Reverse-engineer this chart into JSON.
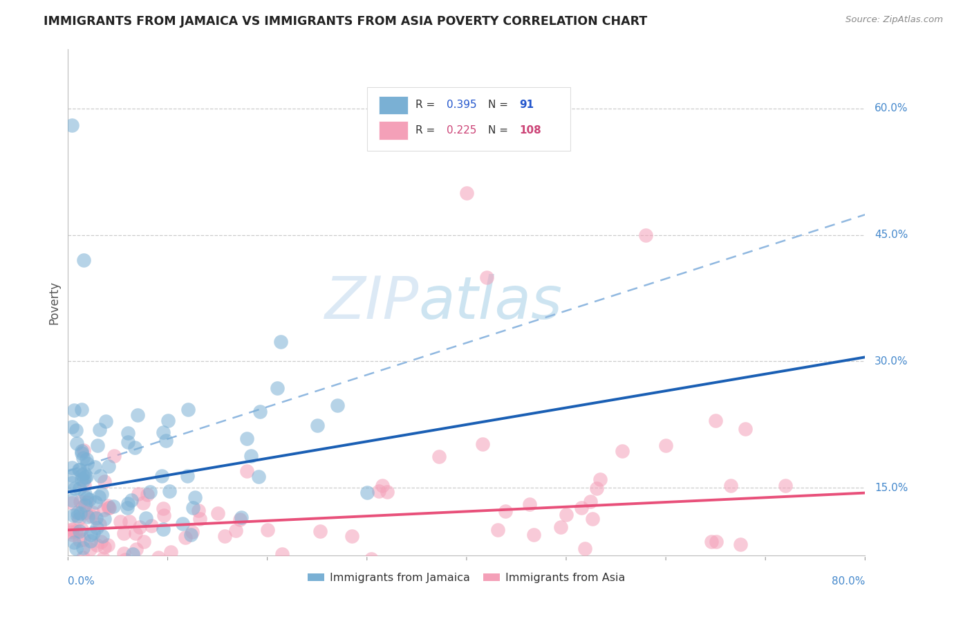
{
  "title": "IMMIGRANTS FROM JAMAICA VS IMMIGRANTS FROM ASIA POVERTY CORRELATION CHART",
  "source": "Source: ZipAtlas.com",
  "ylabel": "Poverty",
  "ytick_labels": [
    "15.0%",
    "30.0%",
    "45.0%",
    "60.0%"
  ],
  "ytick_values": [
    0.15,
    0.3,
    0.45,
    0.6
  ],
  "xlim": [
    0.0,
    0.8
  ],
  "ylim": [
    0.07,
    0.67
  ],
  "jamaica_color": "#7ab0d4",
  "asia_color": "#f4a0b8",
  "jamaica_line_color": "#1a5fb4",
  "asia_line_color": "#e8507a",
  "dash_line_color": "#90b8e0",
  "grid_color": "#cccccc",
  "watermark_color": "#c5dff0",
  "background_color": "#ffffff",
  "title_color": "#222222",
  "source_color": "#888888",
  "ylabel_color": "#555555",
  "ytick_color": "#4488cc",
  "xtick_color": "#4488cc",
  "legend_R_jamaica": "0.395",
  "legend_N_jamaica": "91",
  "legend_R_asia": "0.225",
  "legend_N_asia": "108",
  "legend_val_color": "#2255cc",
  "legend_asia_val_color": "#cc4477",
  "jamaica_trend": {
    "slope": 0.2,
    "intercept": 0.145
  },
  "asia_trend": {
    "slope": 0.055,
    "intercept": 0.1
  },
  "dash_trend": {
    "slope": 0.38,
    "intercept": 0.17
  }
}
